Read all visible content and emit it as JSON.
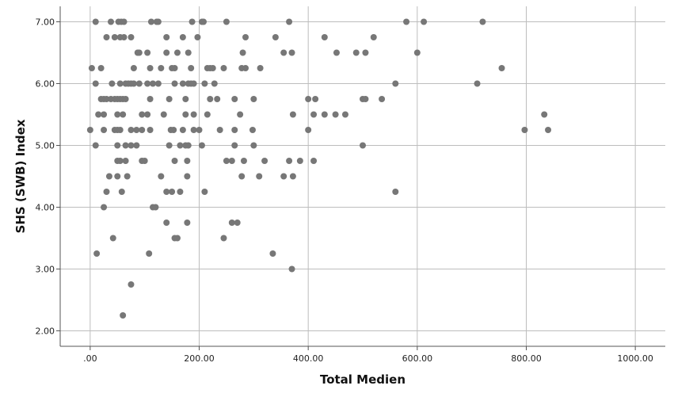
{
  "chart_data": {
    "type": "scatter",
    "xlabel": "Total Medien",
    "ylabel": "SHS (SWB) Index",
    "xlim": [
      -55,
      1055
    ],
    "ylim": [
      1.75,
      7.25
    ],
    "x_ticks": [
      {
        "value": 0,
        "label": ".00"
      },
      {
        "value": 200,
        "label": "200.00"
      },
      {
        "value": 400,
        "label": "400.00"
      },
      {
        "value": 600,
        "label": "600.00"
      },
      {
        "value": 800,
        "label": "800.00"
      },
      {
        "value": 1000,
        "label": "1000.00"
      }
    ],
    "y_ticks": [
      {
        "value": 2,
        "label": "2.00"
      },
      {
        "value": 3,
        "label": "3.00"
      },
      {
        "value": 4,
        "label": "4.00"
      },
      {
        "value": 5,
        "label": "5.00"
      },
      {
        "value": 6,
        "label": "6.00"
      },
      {
        "value": 7,
        "label": "7.00"
      }
    ],
    "grid": true,
    "colors": {
      "points": "#777777",
      "grid": "#bdbdbd",
      "axis": "#555555"
    },
    "points": [
      [
        10,
        7.0
      ],
      [
        38,
        7.0
      ],
      [
        52,
        7.0
      ],
      [
        57,
        7.0
      ],
      [
        62,
        7.0
      ],
      [
        112,
        7.0
      ],
      [
        122,
        7.0
      ],
      [
        125,
        7.0
      ],
      [
        187,
        7.0
      ],
      [
        205,
        7.0
      ],
      [
        208,
        7.0
      ],
      [
        250,
        7.0
      ],
      [
        365,
        7.0
      ],
      [
        580,
        7.0
      ],
      [
        612,
        7.0
      ],
      [
        720,
        7.0
      ],
      [
        30,
        6.75
      ],
      [
        45,
        6.75
      ],
      [
        55,
        6.75
      ],
      [
        62,
        6.75
      ],
      [
        75,
        6.75
      ],
      [
        140,
        6.75
      ],
      [
        170,
        6.75
      ],
      [
        197,
        6.75
      ],
      [
        285,
        6.75
      ],
      [
        340,
        6.75
      ],
      [
        430,
        6.75
      ],
      [
        520,
        6.75
      ],
      [
        87,
        6.5
      ],
      [
        90,
        6.5
      ],
      [
        105,
        6.5
      ],
      [
        140,
        6.5
      ],
      [
        160,
        6.5
      ],
      [
        180,
        6.5
      ],
      [
        280,
        6.5
      ],
      [
        355,
        6.5
      ],
      [
        370,
        6.5
      ],
      [
        452,
        6.5
      ],
      [
        488,
        6.5
      ],
      [
        505,
        6.5
      ],
      [
        600,
        6.5
      ],
      [
        3,
        6.25
      ],
      [
        20,
        6.25
      ],
      [
        80,
        6.25
      ],
      [
        110,
        6.25
      ],
      [
        130,
        6.25
      ],
      [
        150,
        6.25
      ],
      [
        155,
        6.25
      ],
      [
        185,
        6.25
      ],
      [
        215,
        6.25
      ],
      [
        220,
        6.25
      ],
      [
        225,
        6.25
      ],
      [
        245,
        6.25
      ],
      [
        278,
        6.25
      ],
      [
        285,
        6.25
      ],
      [
        312,
        6.25
      ],
      [
        755,
        6.25
      ],
      [
        10,
        6.0
      ],
      [
        40,
        6.0
      ],
      [
        55,
        6.0
      ],
      [
        65,
        6.0
      ],
      [
        70,
        6.0
      ],
      [
        75,
        6.0
      ],
      [
        80,
        6.0
      ],
      [
        90,
        6.0
      ],
      [
        105,
        6.0
      ],
      [
        115,
        6.0
      ],
      [
        125,
        6.0
      ],
      [
        155,
        6.0
      ],
      [
        170,
        6.0
      ],
      [
        180,
        6.0
      ],
      [
        185,
        6.0
      ],
      [
        190,
        6.0
      ],
      [
        210,
        6.0
      ],
      [
        228,
        6.0
      ],
      [
        560,
        6.0
      ],
      [
        710,
        6.0
      ],
      [
        20,
        5.75
      ],
      [
        25,
        5.75
      ],
      [
        30,
        5.75
      ],
      [
        38,
        5.75
      ],
      [
        45,
        5.75
      ],
      [
        50,
        5.75
      ],
      [
        55,
        5.75
      ],
      [
        60,
        5.75
      ],
      [
        65,
        5.75
      ],
      [
        110,
        5.75
      ],
      [
        145,
        5.75
      ],
      [
        175,
        5.75
      ],
      [
        220,
        5.75
      ],
      [
        233,
        5.75
      ],
      [
        265,
        5.75
      ],
      [
        300,
        5.75
      ],
      [
        400,
        5.75
      ],
      [
        413,
        5.75
      ],
      [
        500,
        5.75
      ],
      [
        505,
        5.75
      ],
      [
        535,
        5.75
      ],
      [
        15,
        5.5
      ],
      [
        25,
        5.5
      ],
      [
        50,
        5.5
      ],
      [
        60,
        5.5
      ],
      [
        95,
        5.5
      ],
      [
        105,
        5.5
      ],
      [
        135,
        5.5
      ],
      [
        175,
        5.5
      ],
      [
        190,
        5.5
      ],
      [
        215,
        5.5
      ],
      [
        275,
        5.5
      ],
      [
        372,
        5.5
      ],
      [
        410,
        5.5
      ],
      [
        430,
        5.5
      ],
      [
        450,
        5.5
      ],
      [
        468,
        5.5
      ],
      [
        833,
        5.5
      ],
      [
        0,
        5.25
      ],
      [
        25,
        5.25
      ],
      [
        45,
        5.25
      ],
      [
        50,
        5.25
      ],
      [
        55,
        5.25
      ],
      [
        75,
        5.25
      ],
      [
        85,
        5.25
      ],
      [
        95,
        5.25
      ],
      [
        110,
        5.25
      ],
      [
        148,
        5.25
      ],
      [
        153,
        5.25
      ],
      [
        170,
        5.25
      ],
      [
        190,
        5.25
      ],
      [
        200,
        5.25
      ],
      [
        238,
        5.25
      ],
      [
        265,
        5.25
      ],
      [
        298,
        5.25
      ],
      [
        400,
        5.25
      ],
      [
        797,
        5.25
      ],
      [
        840,
        5.25
      ],
      [
        10,
        5.0
      ],
      [
        50,
        5.0
      ],
      [
        65,
        5.0
      ],
      [
        75,
        5.0
      ],
      [
        85,
        5.0
      ],
      [
        145,
        5.0
      ],
      [
        165,
        5.0
      ],
      [
        175,
        5.0
      ],
      [
        180,
        5.0
      ],
      [
        205,
        5.0
      ],
      [
        265,
        5.0
      ],
      [
        300,
        5.0
      ],
      [
        500,
        5.0
      ],
      [
        50,
        4.75
      ],
      [
        55,
        4.75
      ],
      [
        65,
        4.75
      ],
      [
        95,
        4.75
      ],
      [
        100,
        4.75
      ],
      [
        155,
        4.75
      ],
      [
        178,
        4.75
      ],
      [
        250,
        4.75
      ],
      [
        260,
        4.75
      ],
      [
        282,
        4.75
      ],
      [
        320,
        4.75
      ],
      [
        365,
        4.75
      ],
      [
        385,
        4.75
      ],
      [
        410,
        4.75
      ],
      [
        35,
        4.5
      ],
      [
        50,
        4.5
      ],
      [
        68,
        4.5
      ],
      [
        130,
        4.5
      ],
      [
        178,
        4.5
      ],
      [
        278,
        4.5
      ],
      [
        310,
        4.5
      ],
      [
        355,
        4.5
      ],
      [
        372,
        4.5
      ],
      [
        30,
        4.25
      ],
      [
        58,
        4.25
      ],
      [
        140,
        4.25
      ],
      [
        150,
        4.25
      ],
      [
        165,
        4.25
      ],
      [
        210,
        4.25
      ],
      [
        560,
        4.25
      ],
      [
        25,
        4.0
      ],
      [
        115,
        4.0
      ],
      [
        120,
        4.0
      ],
      [
        140,
        3.75
      ],
      [
        178,
        3.75
      ],
      [
        260,
        3.75
      ],
      [
        270,
        3.75
      ],
      [
        42,
        3.5
      ],
      [
        155,
        3.5
      ],
      [
        160,
        3.5
      ],
      [
        245,
        3.5
      ],
      [
        12,
        3.25
      ],
      [
        108,
        3.25
      ],
      [
        335,
        3.25
      ],
      [
        370,
        3.0
      ],
      [
        75,
        2.75
      ],
      [
        60,
        2.25
      ]
    ]
  }
}
